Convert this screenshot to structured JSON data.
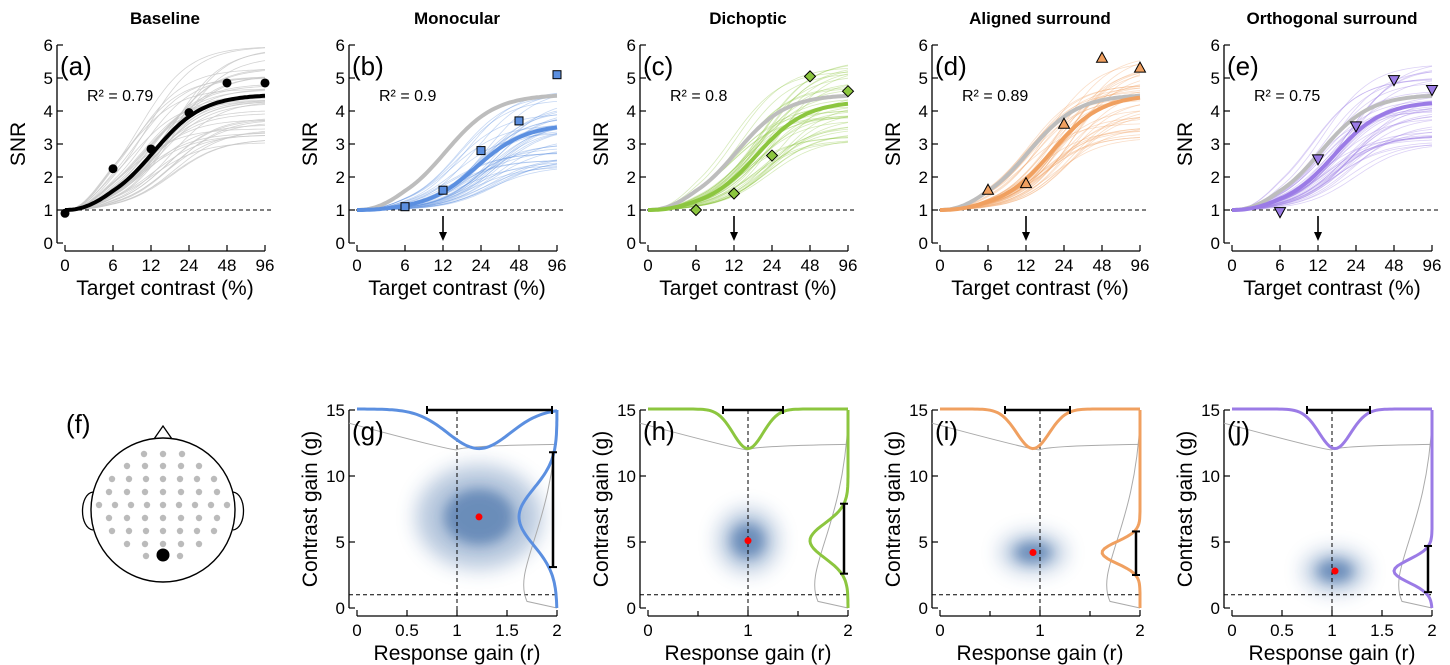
{
  "colors": {
    "baseline": "#000000",
    "baseline_band": "#c8c8c8",
    "reference_curve": "#bdbdbd",
    "monocular": "#5b8fe0",
    "dichoptic": "#8cc63f",
    "aligned": "#f0a060",
    "orthogonal": "#9b7be6",
    "density": "#2e5e9e",
    "peak_marker": "#ff0000",
    "electrode": "#bbbbbb",
    "electrode_selected": "#000000"
  },
  "top_row": {
    "xlabel": "Target contrast (%)",
    "ylabel": "SNR",
    "xticks": [
      "0",
      "6",
      "12",
      "24",
      "48",
      "96"
    ],
    "yticks": [
      "0",
      "1",
      "2",
      "3",
      "4",
      "5",
      "6"
    ]
  },
  "bottom_row": {
    "xlabel": "Response gain (r)",
    "ylabel": "Contrast gain (g)",
    "xticks_full": [
      "0",
      "0.5",
      "1",
      "1.5",
      "2"
    ],
    "xticks_short": [
      "0",
      "1",
      "2"
    ],
    "yticks": [
      "0",
      "5",
      "10",
      "15"
    ]
  },
  "panel_f": {
    "label": "(f)",
    "electrodes": "scalp-map",
    "selected": "occipital"
  },
  "chart_data": [
    {
      "type": "line",
      "panel": "(a)",
      "title": "Baseline",
      "annotation": "R² = 0.79",
      "xlabel": "Target contrast (%)",
      "ylabel": "SNR",
      "ylim": [
        0,
        6
      ],
      "x": [
        0,
        6,
        12,
        24,
        48,
        96
      ],
      "series": [
        {
          "values": [
            0.9,
            2.25,
            2.85,
            3.95,
            4.85,
            4.85
          ],
          "fit_max": 4.5,
          "fit_c50": 12.5
        }
      ],
      "reference_line": 1,
      "stimulus_arrow": null
    },
    {
      "type": "line",
      "panel": "(b)",
      "title": "Monocular",
      "annotation": "R² = 0.9",
      "xlabel": "Target contrast (%)",
      "ylabel": "SNR",
      "ylim": [
        0,
        6
      ],
      "x": [
        6,
        12,
        24,
        48,
        96
      ],
      "series": [
        {
          "values": [
            1.1,
            1.6,
            2.8,
            3.7,
            5.1
          ],
          "fit_max": 3.6,
          "fit_c50": 22
        }
      ],
      "reference_line": 1,
      "stimulus_arrow": 12
    },
    {
      "type": "line",
      "panel": "(c)",
      "title": "Dichoptic",
      "annotation": "R² = 0.8",
      "xlabel": "Target contrast (%)",
      "ylabel": "SNR",
      "ylim": [
        0,
        6
      ],
      "x": [
        6,
        12,
        24,
        48,
        96
      ],
      "series": [
        {
          "values": [
            1.0,
            1.5,
            2.65,
            5.05,
            4.6
          ],
          "fit_max": 4.3,
          "fit_c50": 18
        }
      ],
      "reference_line": 1,
      "stimulus_arrow": 12
    },
    {
      "type": "line",
      "panel": "(d)",
      "title": "Aligned surround",
      "annotation": "R² = 0.89",
      "xlabel": "Target contrast (%)",
      "ylabel": "SNR",
      "ylim": [
        0,
        6
      ],
      "x": [
        6,
        12,
        24,
        48,
        96
      ],
      "series": [
        {
          "values": [
            1.6,
            1.8,
            3.6,
            5.6,
            5.3
          ],
          "fit_max": 4.5,
          "fit_c50": 19
        }
      ],
      "reference_line": 1,
      "stimulus_arrow": 12
    },
    {
      "type": "line",
      "panel": "(e)",
      "title": "Orthogonal surround",
      "annotation": "R² = 0.75",
      "xlabel": "Target contrast (%)",
      "ylabel": "SNR",
      "ylim": [
        0,
        6
      ],
      "x": [
        6,
        12,
        24,
        48,
        96
      ],
      "series": [
        {
          "values": [
            0.95,
            2.55,
            3.55,
            4.95,
            4.65
          ],
          "fit_max": 4.3,
          "fit_c50": 16
        }
      ],
      "reference_line": 1,
      "stimulus_arrow": 12
    },
    {
      "type": "heatmap",
      "panel": "(g)",
      "xlabel": "Response gain (r)",
      "ylabel": "Contrast gain (g)",
      "xlim": [
        0,
        2
      ],
      "ylim": [
        0,
        15
      ],
      "peak": [
        1.22,
        6.9
      ],
      "r_ci": [
        0.7,
        1.95
      ],
      "g_ci": [
        3.1,
        11.8
      ],
      "reference_r": 1,
      "reference_g": 1
    },
    {
      "type": "heatmap",
      "panel": "(h)",
      "xlabel": "Response gain (r)",
      "ylabel": "Contrast gain (g)",
      "xlim": [
        0,
        2
      ],
      "ylim": [
        0,
        15
      ],
      "peak": [
        1.0,
        5.1
      ],
      "r_ci": [
        0.75,
        1.35
      ],
      "g_ci": [
        2.6,
        7.9
      ],
      "reference_r": 1,
      "reference_g": 1
    },
    {
      "type": "heatmap",
      "panel": "(i)",
      "xlabel": "Response gain (r)",
      "ylabel": "Contrast gain (g)",
      "xlim": [
        0,
        2
      ],
      "ylim": [
        0,
        15
      ],
      "peak": [
        0.93,
        4.2
      ],
      "r_ci": [
        0.65,
        1.3
      ],
      "g_ci": [
        2.5,
        5.8
      ],
      "reference_r": 1,
      "reference_g": 1
    },
    {
      "type": "heatmap",
      "panel": "(j)",
      "xlabel": "Response gain (r)",
      "ylabel": "Contrast gain (g)",
      "xlim": [
        0,
        2
      ],
      "ylim": [
        0,
        15
      ],
      "peak": [
        1.03,
        2.8
      ],
      "r_ci": [
        0.75,
        1.38
      ],
      "g_ci": [
        1.2,
        4.7
      ],
      "reference_r": 1,
      "reference_g": 1
    }
  ]
}
